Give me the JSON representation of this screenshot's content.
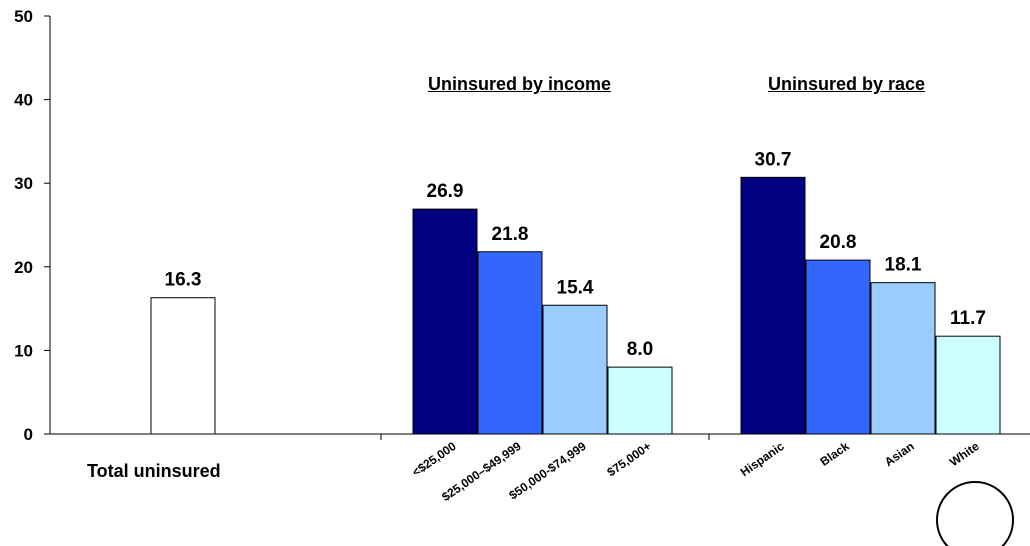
{
  "chart_data": {
    "type": "bar",
    "ylim": [
      0,
      50
    ],
    "y_ticks": [
      "0",
      "10",
      "20",
      "30",
      "40",
      "50"
    ],
    "grid": false,
    "groups": [
      {
        "heading": "",
        "bars": [
          {
            "label": "Total uninsured",
            "value": 16.3,
            "value_label": "16.3",
            "color": "#ffffff"
          }
        ]
      },
      {
        "heading": "Uninsured by income",
        "bars": [
          {
            "label": "<$25,000",
            "value": 26.9,
            "value_label": "26.9",
            "color": "#000080"
          },
          {
            "label": "$25,000–$49,999",
            "value": 21.8,
            "value_label": "21.8",
            "color": "#3366ff"
          },
          {
            "label": "$50,000-$74,999",
            "value": 15.4,
            "value_label": "15.4",
            "color": "#99ccff"
          },
          {
            "label": "$75,000+",
            "value": 8.0,
            "value_label": "8.0",
            "color": "#ccffff"
          }
        ]
      },
      {
        "heading": "Uninsured by race",
        "bars": [
          {
            "label": "Hispanic",
            "value": 30.7,
            "value_label": "30.7",
            "color": "#000080"
          },
          {
            "label": "Black",
            "value": 20.8,
            "value_label": "20.8",
            "color": "#3366ff"
          },
          {
            "label": "Asian",
            "value": 18.1,
            "value_label": "18.1",
            "color": "#99ccff"
          },
          {
            "label": "White",
            "value": 11.7,
            "value_label": "11.7",
            "color": "#ccffff"
          }
        ]
      }
    ]
  }
}
